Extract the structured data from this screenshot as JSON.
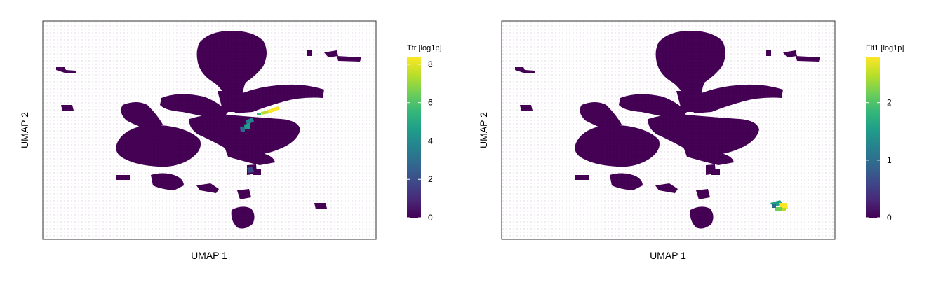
{
  "chart_data": [
    {
      "type": "hexbin-embedding",
      "xlabel": "UMAP 1",
      "ylabel": "UMAP 2",
      "colorbar": {
        "title": "Ttr [log1p]",
        "min": 0,
        "max": 8.4,
        "ticks": [
          0,
          2,
          4,
          6,
          8
        ],
        "tick_labels": [
          "0",
          "2",
          "4",
          "6",
          "8"
        ],
        "colormap": "viridis"
      },
      "highlight_regions": [
        {
          "cluster": "upper-right arm",
          "level": 8.0
        },
        {
          "cluster": "central junction",
          "level": 4.5
        },
        {
          "cluster": "lower-middle fragment",
          "level": 2.5
        }
      ]
    },
    {
      "type": "hexbin-embedding",
      "xlabel": "UMAP 1",
      "ylabel": "UMAP 2",
      "colorbar": {
        "title": "Flt1 [log1p]",
        "min": 0,
        "max": 2.8,
        "ticks": [
          0,
          1,
          2
        ],
        "tick_labels": [
          "0",
          "1",
          "2"
        ],
        "colormap": "viridis"
      },
      "highlight_regions": [
        {
          "cluster": "isolated lower-right cluster",
          "level": 2.2
        }
      ]
    }
  ],
  "colors": {
    "background_cell": "#440154",
    "viridis": [
      "#440154",
      "#482878",
      "#3e4989",
      "#31688e",
      "#26828e",
      "#1f9e89",
      "#35b779",
      "#6ece58",
      "#b5de2b",
      "#fde725"
    ]
  }
}
